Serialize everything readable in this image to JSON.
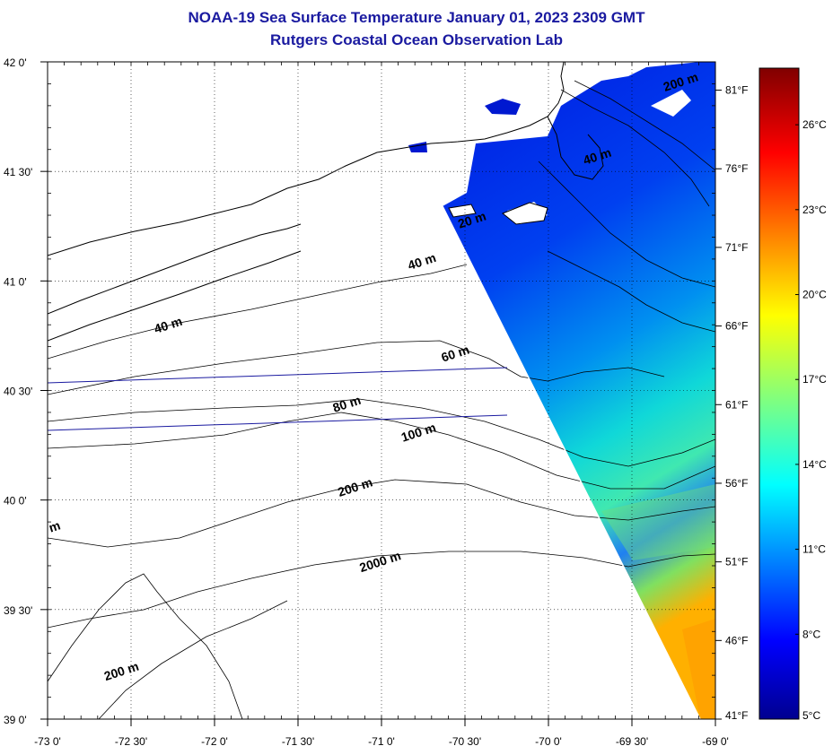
{
  "header": {
    "title": "NOAA-19 Sea Surface Temperature January 01, 2023 2309 GMT",
    "subtitle": "Rutgers Coastal Ocean Observation Lab"
  },
  "map": {
    "lon_range": [
      -73.0,
      -69.0
    ],
    "lat_range": [
      39.0,
      42.0
    ],
    "lon_ticks": [
      {
        "value": -73.0,
        "label": "-73 0'"
      },
      {
        "value": -72.5,
        "label": "-72 30'"
      },
      {
        "value": -72.0,
        "label": "-72 0'"
      },
      {
        "value": -71.5,
        "label": "-71 30'"
      },
      {
        "value": -71.0,
        "label": "-71 0'"
      },
      {
        "value": -70.5,
        "label": "-70 30'"
      },
      {
        "value": -70.0,
        "label": "-70 0'"
      },
      {
        "value": -69.5,
        "label": "-69 30'"
      },
      {
        "value": -69.0,
        "label": "-69 0'"
      }
    ],
    "lat_ticks": [
      {
        "value": 42.0,
        "label": "42 0'"
      },
      {
        "value": 41.5,
        "label": "41 30'"
      },
      {
        "value": 41.0,
        "label": "41 0'"
      },
      {
        "value": 40.5,
        "label": "40 30'"
      },
      {
        "value": 40.0,
        "label": "40 0'"
      },
      {
        "value": 39.5,
        "label": "39 30'"
      },
      {
        "value": 39.0,
        "label": "39 0'"
      }
    ],
    "grid": "dotted",
    "depth_labels": [
      {
        "label": "20 m",
        "lon": -70.45,
        "lat": 41.26
      },
      {
        "label": "40 m",
        "lon": -70.75,
        "lat": 41.07
      },
      {
        "label": "40 m",
        "lon": -72.27,
        "lat": 40.78
      },
      {
        "label": "40 m",
        "lon": -69.7,
        "lat": 41.55
      },
      {
        "label": "60 m",
        "lon": -70.55,
        "lat": 40.65
      },
      {
        "label": "80 m",
        "lon": -71.2,
        "lat": 40.42
      },
      {
        "label": "100 m",
        "lon": -70.77,
        "lat": 40.29
      },
      {
        "label": "200 m",
        "lon": -71.15,
        "lat": 40.04
      },
      {
        "label": "2000 m",
        "lon": -71.0,
        "lat": 39.7
      },
      {
        "label": "200 m",
        "lon": -72.55,
        "lat": 39.2
      },
      {
        "label": "200 m",
        "lon": -69.2,
        "lat": 41.89
      },
      {
        "label": "m",
        "lon": -72.95,
        "lat": 39.86
      }
    ],
    "colors": {
      "land_outline": "#000000",
      "track_line": "#1a1aa0",
      "no_data": "#ffffff"
    }
  },
  "colorbar": {
    "celsius_labels": [
      "5°C",
      "8°C",
      "11°C",
      "14°C",
      "17°C",
      "20°C",
      "23°C",
      "26°C"
    ],
    "fahrenheit_labels": [
      "41°F",
      "46°F",
      "51°F",
      "56°F",
      "61°F",
      "66°F",
      "71°F",
      "76°F",
      "81°F"
    ],
    "range_c": [
      5,
      28
    ]
  }
}
